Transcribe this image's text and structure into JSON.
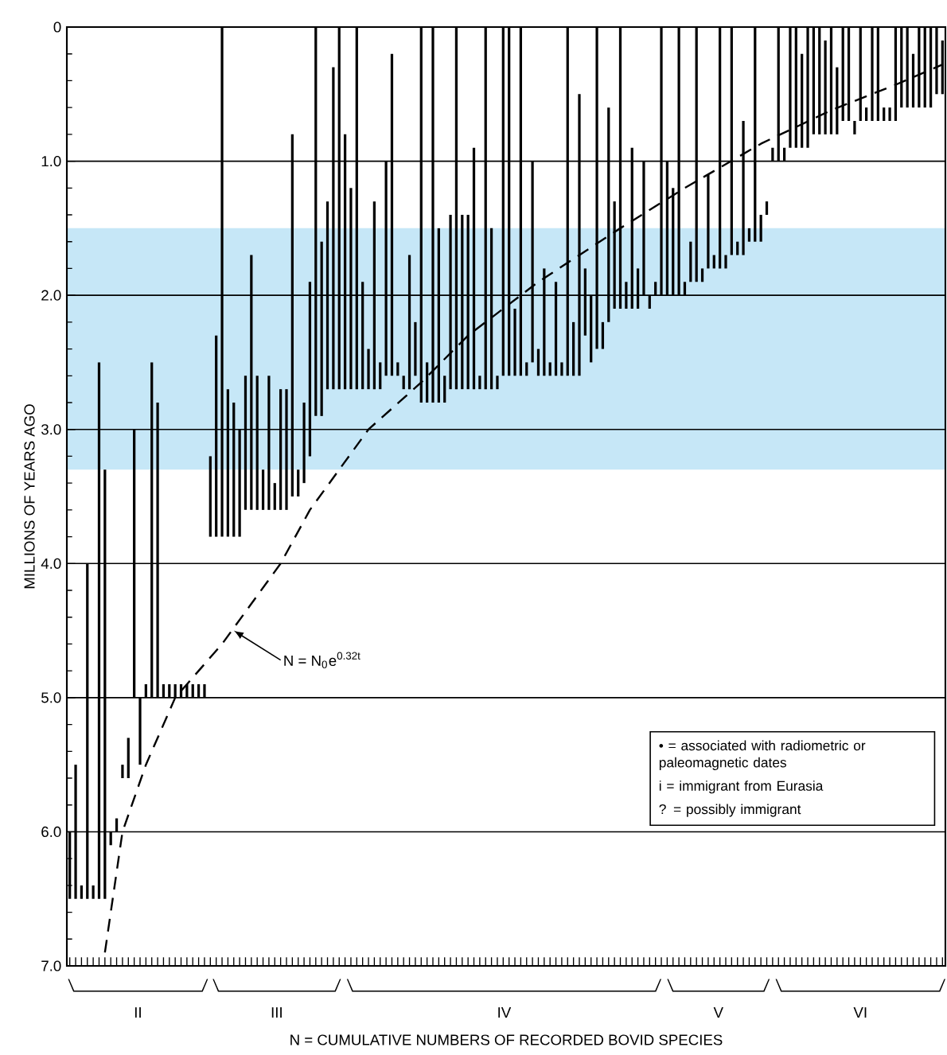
{
  "chart_data": {
    "type": "bar",
    "xlabel": "N = CUMULATIVE NUMBERS OF RECORDED BOVID SPECIES",
    "ylabel": "MILLIONS OF YEARS AGO",
    "categories": [
      null,
      null,
      null,
      null,
      null,
      null,
      null,
      null,
      null,
      null,
      null,
      null,
      null,
      null,
      null,
      null,
      null,
      null,
      null,
      null,
      null,
      null,
      null,
      null,
      null,
      null,
      null,
      null,
      null,
      null,
      null,
      null,
      null,
      null,
      null,
      null,
      null,
      null,
      null,
      null,
      null,
      null,
      null,
      null,
      null,
      null,
      null,
      null,
      null,
      null,
      null,
      null,
      null,
      null,
      null,
      null,
      null,
      null,
      null,
      null,
      null,
      null,
      null,
      null,
      null,
      null,
      null,
      null,
      null,
      null,
      null,
      null,
      null,
      null,
      null,
      null,
      null,
      null,
      null,
      null,
      null,
      null,
      null,
      null,
      null,
      null,
      null,
      null,
      null,
      null,
      null,
      null,
      null,
      null,
      null,
      null,
      null,
      null,
      null,
      null,
      null,
      null,
      null,
      null,
      null,
      null,
      null,
      null,
      null,
      null,
      null,
      null,
      null,
      null,
      null,
      null,
      null,
      null,
      null,
      null,
      null,
      null,
      null,
      null,
      null,
      null,
      null,
      null,
      null,
      null,
      null,
      null,
      null,
      null,
      null,
      null,
      null,
      null,
      null,
      null,
      null,
      null,
      null,
      null,
      null,
      null,
      null,
      null,
      null,
      null
    ],
    "series": [
      {
        "color": "#000000",
        "base": [
          6.0,
          5.5,
          6.4,
          4.0,
          6.4,
          2.5,
          3.3,
          6.0,
          5.9,
          5.5,
          5.3,
          3.0,
          5.0,
          4.9,
          2.5,
          2.8,
          4.9,
          4.9,
          4.9,
          4.9,
          4.9,
          4.9,
          4.9,
          4.9,
          3.2,
          2.3,
          0,
          2.7,
          2.8,
          3.0,
          2.6,
          1.7,
          2.6,
          3.3,
          2.6,
          3.4,
          2.7,
          2.7,
          0.8,
          3.3,
          2.8,
          1.9,
          0,
          1.6,
          1.3,
          0.3,
          0,
          0.8,
          1.2,
          0,
          1.9,
          2.4,
          1.3,
          2.5,
          1.0,
          0.2,
          2.5,
          2.6,
          1.7,
          2.2,
          0,
          2.5,
          0,
          1.5,
          2.6,
          1.4,
          0,
          1.4,
          1.4,
          0.9,
          2.6,
          0,
          1.5,
          2.6,
          0,
          0,
          2.1,
          0,
          2.5,
          1.0,
          2.4,
          1.8,
          2.5,
          1.9,
          2.5,
          0,
          2.2,
          0.5,
          1.8,
          2.0,
          0,
          2.2,
          0.6,
          1.3,
          0,
          1.9,
          0.9,
          1.8,
          1.0,
          2.0,
          1.9,
          0,
          1.0,
          1.2,
          0,
          1.9,
          1.6,
          0,
          1.8,
          1.1,
          1.7,
          0,
          1.7,
          0,
          1.6,
          0.7,
          1.5,
          0,
          1.4,
          1.3,
          0.9,
          0,
          0.9,
          0,
          0,
          0.2,
          0,
          0,
          0,
          0.1,
          0,
          0.3,
          0,
          0,
          0.7,
          0,
          0.6,
          0,
          0,
          0.6,
          0.6,
          0,
          0,
          0,
          0.2,
          0,
          0,
          0,
          0,
          0.1
        ],
        "values": [
          0.5,
          1.0,
          0.1,
          2.5,
          0.1,
          4.0,
          3.2,
          0.1,
          0.1,
          0.1,
          0.3,
          2.0,
          0.5,
          0.1,
          2.5,
          2.2,
          0.1,
          0.1,
          0.1,
          0.1,
          0.1,
          0.1,
          0.1,
          0.1,
          0.6,
          1.5,
          3.8,
          1.1,
          1.0,
          0.8,
          1.0,
          1.9,
          1.0,
          0.3,
          1.0,
          0.2,
          0.9,
          0.9,
          2.7,
          0.2,
          0.6,
          1.3,
          2.9,
          1.3,
          1.4,
          2.4,
          2.7,
          1.9,
          1.5,
          2.7,
          0.8,
          0.3,
          1.4,
          0.2,
          1.6,
          2.4,
          0.1,
          0.1,
          1.0,
          0.4,
          2.8,
          0.3,
          2.8,
          1.3,
          0.2,
          1.3,
          2.7,
          1.3,
          1.3,
          1.8,
          0.1,
          2.7,
          1.2,
          0.1,
          2.6,
          2.6,
          0.5,
          2.6,
          0.1,
          1.5,
          0.2,
          0.8,
          0.1,
          0.7,
          0.1,
          2.6,
          0.4,
          2.1,
          0.5,
          0.5,
          2.4,
          0.2,
          1.6,
          0.8,
          2.1,
          0.2,
          1.2,
          0.3,
          1.0,
          0.1,
          0.1,
          2.0,
          1.0,
          0.8,
          2.0,
          0.1,
          0.3,
          1.9,
          0.1,
          0.7,
          0.1,
          1.8,
          0.1,
          1.7,
          0.1,
          1.0,
          0.1,
          1.6,
          0.2,
          0.1,
          0.1,
          1.0,
          0.1,
          0.9,
          0.9,
          0.7,
          0.9,
          0.8,
          0.8,
          0.7,
          0.8,
          0.5,
          0.7,
          0.7,
          0.1,
          0.7,
          0.1,
          0.7,
          0.7,
          0.1,
          0.1,
          0.7,
          0.6,
          0.6,
          0.4,
          0.6,
          0.6,
          0.6,
          0.5,
          0.4
        ]
      },
      {
        "type": "line",
        "color": "#000000",
        "line_style": "dashed",
        "values": [
          null,
          null,
          null,
          null,
          null,
          null,
          6.9,
          null,
          null,
          6.0,
          null,
          null,
          null,
          5.5,
          null,
          null,
          null,
          null,
          5.0,
          null,
          null,
          null,
          null,
          null,
          null,
          null,
          4.6,
          null,
          null,
          null,
          null,
          null,
          null,
          null,
          null,
          null,
          4.0,
          null,
          null,
          null,
          null,
          3.6,
          null,
          null,
          null,
          null,
          null,
          null,
          null,
          null,
          null,
          3.0,
          null,
          null,
          null,
          null,
          null,
          null,
          null,
          null,
          2.65,
          null,
          null,
          null,
          null,
          null,
          null,
          null,
          2.3,
          null,
          null,
          null,
          null,
          null,
          null,
          null,
          null,
          null,
          null,
          null,
          1.9,
          null,
          null,
          null,
          null,
          null,
          null,
          null,
          null,
          null,
          null,
          null,
          null,
          null,
          1.5,
          null,
          null,
          null,
          null,
          null,
          null,
          null,
          null,
          null,
          null,
          1.2,
          null,
          null,
          null,
          null,
          null,
          null,
          null,
          null,
          null,
          null,
          null,
          null,
          0.87,
          null,
          null,
          null,
          null,
          null,
          null,
          null,
          null,
          null,
          null,
          null,
          0.62,
          null,
          null,
          null,
          null,
          null,
          null,
          null,
          null,
          null,
          null,
          0.43,
          null,
          null,
          null,
          null,
          null,
          null,
          null,
          0.28
        ]
      }
    ],
    "ylim": [
      7,
      0
    ],
    "yticks": [
      0,
      {
        "value": 1,
        "label": "1.0"
      },
      {
        "value": 2,
        "label": "2.0"
      },
      {
        "value": 3,
        "label": "3.0"
      },
      {
        "value": 4,
        "label": "4.0"
      },
      {
        "value": 5,
        "label": "5.0"
      },
      {
        "value": 6,
        "label": "6.0"
      },
      {
        "value": 7,
        "label": "7.0"
      }
    ],
    "grid": "y",
    "bands": [
      {
        "axis": "y",
        "from": 1.5,
        "to": 3.3,
        "color": "#c6e7f7"
      }
    ],
    "annotations": [
      "II",
      "III",
      "IV",
      "V",
      "VI",
      "N = N$_{0}$e$^{0.32t}$",
      "• = associated with radiometric or paleomagnetic dates",
      "i = immigrant from Eurasia",
      "? = possibly immigrant"
    ]
  }
}
